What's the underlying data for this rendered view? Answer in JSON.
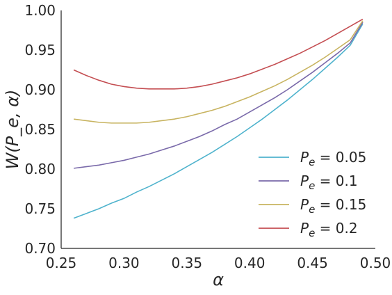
{
  "chart_data": {
    "type": "line",
    "xlabel": "α",
    "ylabel": "W(P_e, α)",
    "xlim": [
      0.25,
      0.5
    ],
    "ylim": [
      0.7,
      1.0
    ],
    "x_ticks": [
      "0.25",
      "0.30",
      "0.35",
      "0.40",
      "0.45",
      "0.50"
    ],
    "y_ticks": [
      "0.70",
      "0.75",
      "0.80",
      "0.85",
      "0.90",
      "0.95",
      "1.00"
    ],
    "grid": false,
    "legend_position": "lower-right",
    "series": [
      {
        "name": "P_e = 0.05",
        "label_base": "P",
        "label_sub": "e",
        "label_rest": " = 0.05",
        "color": "#4fb3cd",
        "x": [
          0.26,
          0.27,
          0.28,
          0.29,
          0.3,
          0.31,
          0.32,
          0.33,
          0.34,
          0.35,
          0.36,
          0.37,
          0.38,
          0.39,
          0.4,
          0.41,
          0.42,
          0.43,
          0.44,
          0.45,
          0.46,
          0.47,
          0.48,
          0.49
        ],
        "y": [
          0.738,
          0.744,
          0.75,
          0.757,
          0.763,
          0.771,
          0.778,
          0.786,
          0.794,
          0.803,
          0.812,
          0.821,
          0.831,
          0.841,
          0.852,
          0.863,
          0.875,
          0.887,
          0.9,
          0.913,
          0.927,
          0.941,
          0.956,
          0.983
        ]
      },
      {
        "name": "P_e = 0.1",
        "label_base": "P",
        "label_sub": "e",
        "label_rest": " = 0.1",
        "color": "#7a6aaa",
        "x": [
          0.26,
          0.27,
          0.28,
          0.29,
          0.3,
          0.31,
          0.32,
          0.33,
          0.34,
          0.35,
          0.36,
          0.37,
          0.38,
          0.39,
          0.4,
          0.41,
          0.42,
          0.43,
          0.44,
          0.45,
          0.46,
          0.47,
          0.48,
          0.49
        ],
        "y": [
          0.801,
          0.803,
          0.805,
          0.808,
          0.811,
          0.815,
          0.819,
          0.824,
          0.829,
          0.835,
          0.841,
          0.848,
          0.856,
          0.863,
          0.872,
          0.881,
          0.89,
          0.9,
          0.911,
          0.922,
          0.934,
          0.946,
          0.959,
          0.985
        ]
      },
      {
        "name": "P_e = 0.15",
        "label_base": "P",
        "label_sub": "e",
        "label_rest": " = 0.15",
        "color": "#c8b461",
        "x": [
          0.26,
          0.27,
          0.28,
          0.29,
          0.3,
          0.31,
          0.32,
          0.33,
          0.34,
          0.35,
          0.36,
          0.37,
          0.38,
          0.39,
          0.4,
          0.41,
          0.42,
          0.43,
          0.44,
          0.45,
          0.46,
          0.47,
          0.48,
          0.49
        ],
        "y": [
          0.863,
          0.861,
          0.859,
          0.858,
          0.858,
          0.858,
          0.859,
          0.861,
          0.863,
          0.866,
          0.87,
          0.874,
          0.879,
          0.885,
          0.891,
          0.898,
          0.905,
          0.913,
          0.922,
          0.931,
          0.941,
          0.952,
          0.963,
          0.987
        ]
      },
      {
        "name": "P_e = 0.2",
        "label_base": "P",
        "label_sub": "e",
        "label_rest": " = 0.2",
        "color": "#c44e52",
        "x": [
          0.26,
          0.27,
          0.28,
          0.29,
          0.3,
          0.31,
          0.32,
          0.33,
          0.34,
          0.35,
          0.36,
          0.37,
          0.38,
          0.39,
          0.4,
          0.41,
          0.42,
          0.43,
          0.44,
          0.45,
          0.46,
          0.47,
          0.48,
          0.49
        ],
        "y": [
          0.925,
          0.918,
          0.912,
          0.907,
          0.904,
          0.902,
          0.901,
          0.901,
          0.901,
          0.902,
          0.904,
          0.907,
          0.911,
          0.915,
          0.92,
          0.926,
          0.932,
          0.939,
          0.946,
          0.954,
          0.962,
          0.971,
          0.98,
          0.989
        ]
      }
    ]
  }
}
